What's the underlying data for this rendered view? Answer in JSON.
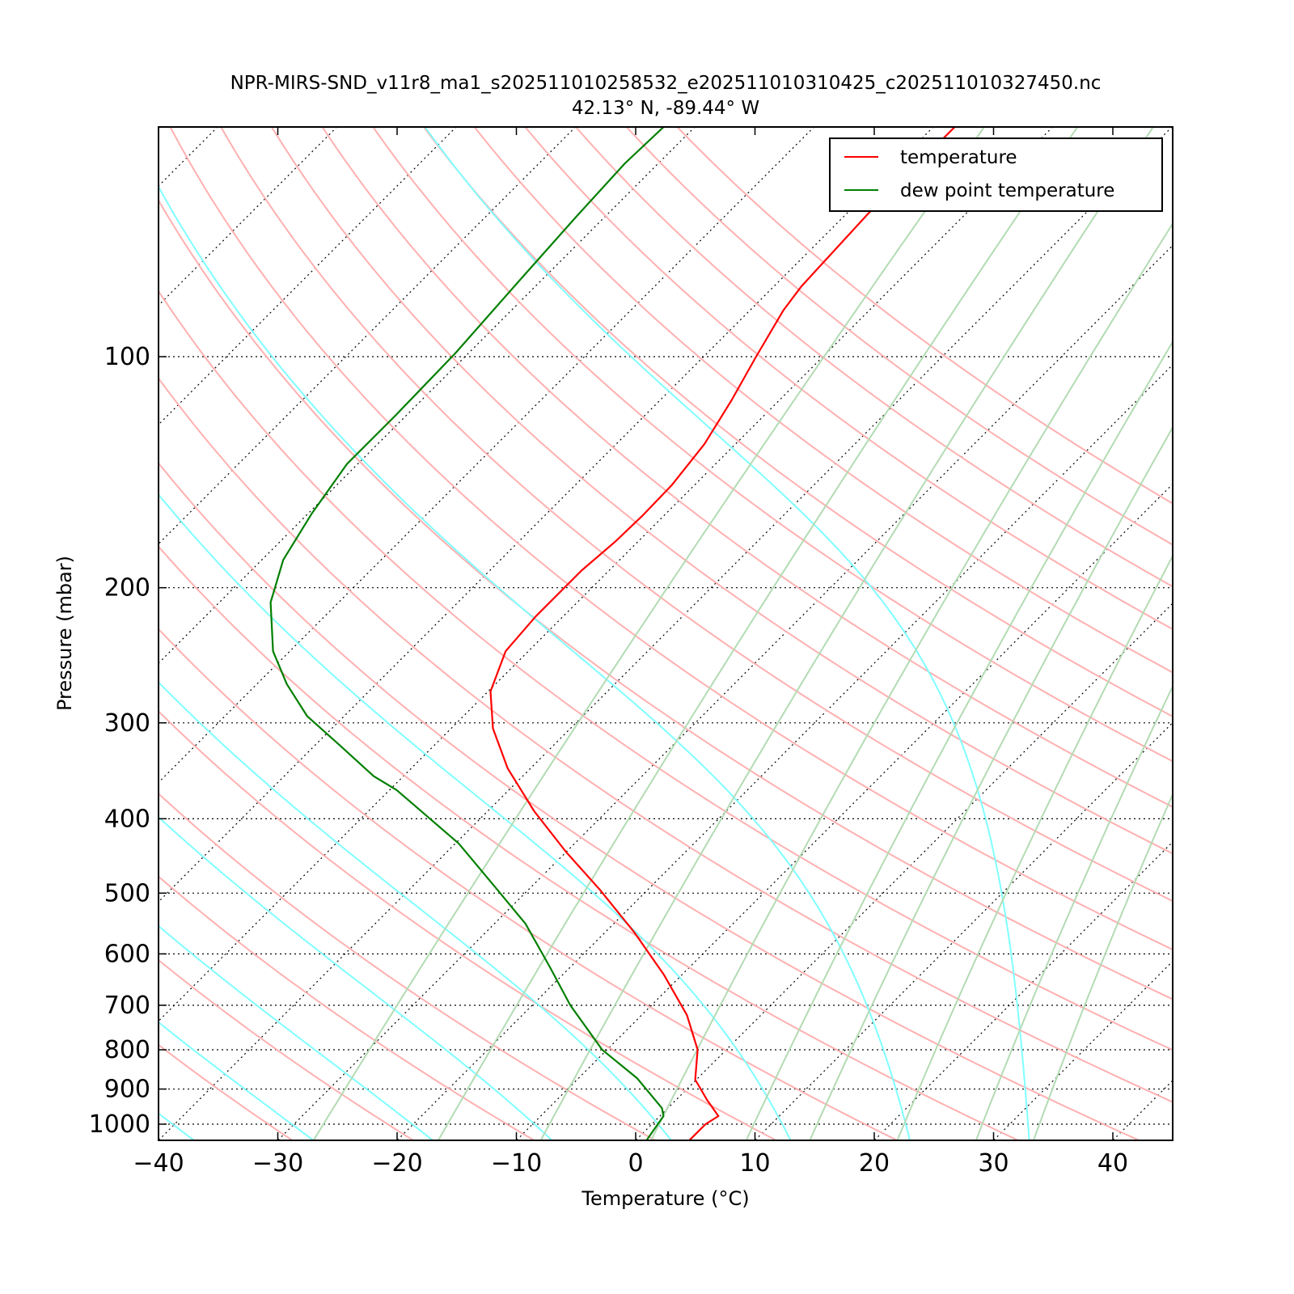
{
  "chart_data": {
    "type": "line",
    "subtype": "skew-t log-p",
    "title": "NPR-MIRS-SND_v11r8_ma1_s202511010258532_e202511010310425_c202511010327450.nc",
    "subtitle": "42.13° N, -89.44° W",
    "xlabel": "Temperature (°C)",
    "ylabel": "Pressure (mbar)",
    "xlim": [
      -40,
      45
    ],
    "ylim": [
      1050,
      50
    ],
    "xticks": [
      "−40",
      "−30",
      "−20",
      "−10",
      "0",
      "10",
      "20",
      "30",
      "40"
    ],
    "xtick_values": [
      -40,
      -30,
      -20,
      -10,
      0,
      10,
      20,
      30,
      40
    ],
    "yticks": [
      "100",
      "200",
      "300",
      "400",
      "500",
      "600",
      "700",
      "800",
      "900",
      "1000"
    ],
    "ytick_values": [
      100,
      200,
      300,
      400,
      500,
      600,
      700,
      800,
      900,
      1000
    ],
    "legend": {
      "placement": "top-right",
      "entries": [
        "temperature",
        "dew point temperature"
      ]
    },
    "colors": {
      "temperature": "#ff0000",
      "dewpoint": "#007f00",
      "dry_adiabat": "#ffb0b0",
      "moist_adiabat": "#80ffff",
      "mixing_ratio": "#b3dbb3",
      "grid": "#000000"
    },
    "series": [
      {
        "name": "temperature",
        "pressure": [
          50,
          65,
          81,
          87,
          100,
          114,
          130,
          147,
          161,
          174,
          190,
          218,
          242,
          273,
          305,
          344,
          391,
          442,
          495,
          563,
          639,
          721,
          800,
          875,
          930,
          976,
          1000,
          1049
        ],
        "temperature": [
          -58.2,
          -58.2,
          -57.7,
          -57.2,
          -55.6,
          -54.0,
          -52.6,
          -51.9,
          -51.8,
          -51.9,
          -52.3,
          -52.3,
          -51.9,
          -49.8,
          -46.5,
          -41.9,
          -36.1,
          -30.0,
          -24.0,
          -17.5,
          -11.5,
          -6.2,
          -2.4,
          -0.1,
          2.6,
          4.9,
          4.5,
          4.5
        ]
      },
      {
        "name": "dew point temperature",
        "pressure": [
          50,
          56,
          66,
          80,
          99,
          119,
          138,
          160,
          184,
          209,
          242,
          267,
          294,
          321,
          352,
          367,
          398,
          431,
          495,
          548,
          623,
          700,
          800,
          871,
          953,
          976,
          1049
        ],
        "temperature": [
          -82.6,
          -82.8,
          -82.4,
          -81.8,
          -81.1,
          -80.9,
          -80.9,
          -79.7,
          -78.2,
          -75.7,
          -71.4,
          -67.5,
          -63.1,
          -57.9,
          -52.5,
          -49.4,
          -44.5,
          -39.7,
          -32.6,
          -27.4,
          -21.8,
          -16.8,
          -10.4,
          -5.1,
          -0.5,
          0.3,
          0.9
        ]
      }
    ],
    "background": {
      "dry_adiabats_theta_K": [
        241,
        251,
        261,
        271,
        281,
        291,
        301,
        311,
        321,
        331,
        341,
        351,
        361,
        371,
        381,
        391,
        401,
        411,
        421,
        431,
        441,
        451
      ],
      "moist_adiabats_start_C_at_1050": [
        -47,
        -37,
        -27,
        -17,
        -7,
        3,
        13,
        23,
        33
      ],
      "mixing_ratios_g_per_kg": [
        0.4,
        1,
        2,
        4,
        7,
        10,
        16,
        24,
        32
      ],
      "isotherms_C": [
        -130,
        -120,
        -110,
        -100,
        -90,
        -80,
        -70,
        -60,
        -50,
        -40,
        -30,
        -20,
        -10,
        0,
        10,
        20,
        30,
        40
      ]
    }
  }
}
